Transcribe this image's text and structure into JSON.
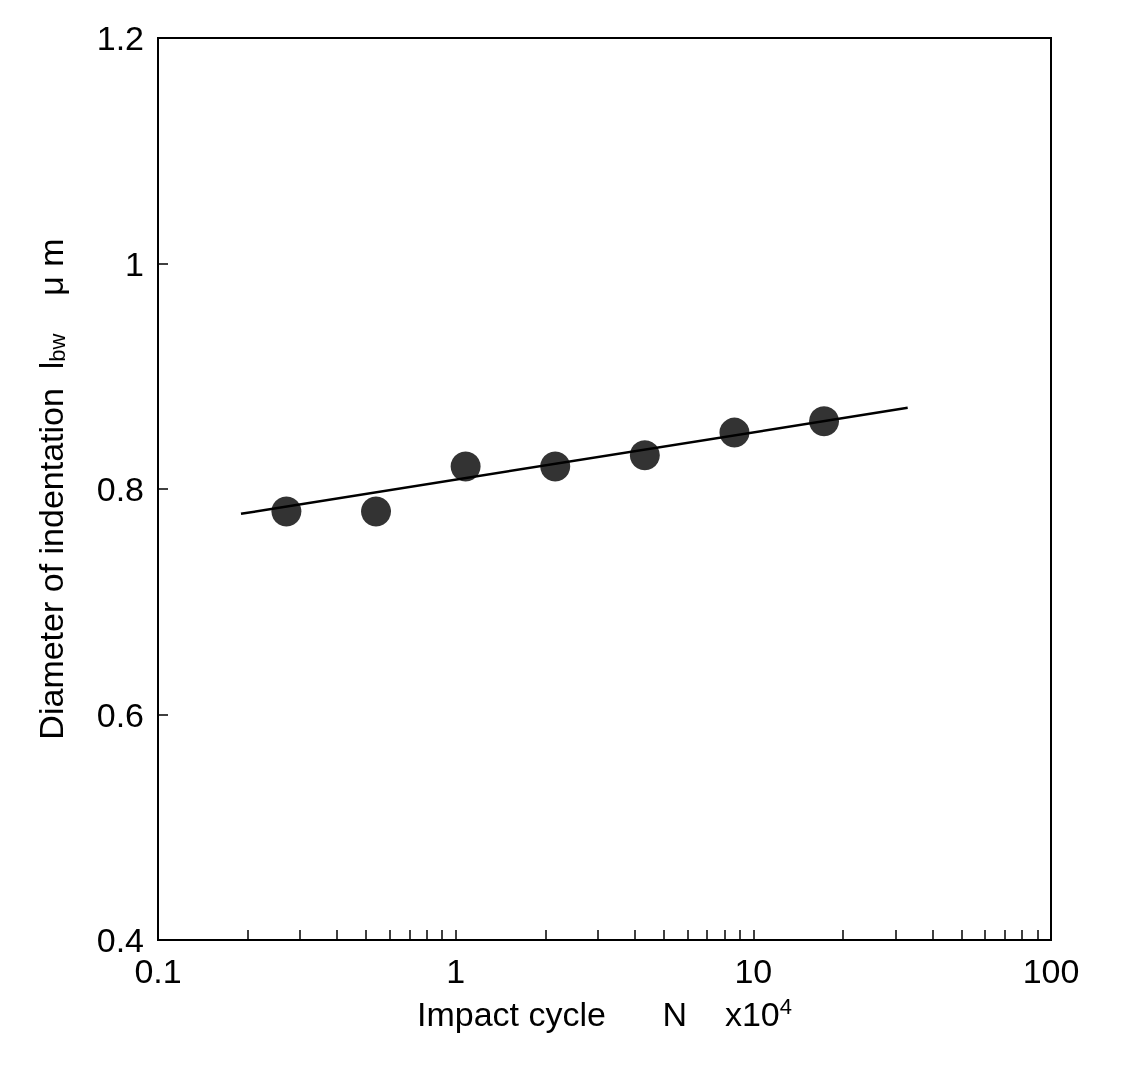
{
  "chart_data": {
    "type": "scatter",
    "xlabel": "Impact cycle      N    x10$^{4}$",
    "ylabel": "Diameter of indentation  l$_{bw}$    μ m",
    "x": [
      0.27,
      0.54,
      1.08,
      2.16,
      4.32,
      8.64,
      17.28
    ],
    "series": [
      {
        "color": "#000000",
        "values": [
          0.78,
          0.78,
          0.82,
          0.82,
          0.83,
          0.85,
          0.86
        ]
      },
      {
        "type": "line",
        "marker": "none",
        "color": "#000000",
        "x": [
          0.19,
          33
        ],
        "values": [
          0.778,
          0.872
        ]
      }
    ],
    "log": "x",
    "xlim": [
      0.1,
      100
    ],
    "ylim": [
      0.4,
      1.2
    ],
    "xticks": [
      0.1,
      {
        "value": 0.2,
        "label": null
      },
      {
        "value": 0.3,
        "label": null
      },
      {
        "value": 0.4,
        "label": null
      },
      {
        "value": 0.5,
        "label": null
      },
      {
        "value": 0.6,
        "label": null
      },
      {
        "value": 0.7,
        "label": null
      },
      {
        "value": 0.8,
        "label": null
      },
      {
        "value": 0.9,
        "label": null
      },
      1,
      {
        "value": 2,
        "label": null
      },
      {
        "value": 3,
        "label": null
      },
      {
        "value": 4,
        "label": null
      },
      {
        "value": 5,
        "label": null
      },
      {
        "value": 6,
        "label": null
      },
      {
        "value": 7,
        "label": null
      },
      {
        "value": 8,
        "label": null
      },
      {
        "value": 9,
        "label": null
      },
      10,
      {
        "value": 20,
        "label": null
      },
      {
        "value": 30,
        "label": null
      },
      {
        "value": 40,
        "label": null
      },
      {
        "value": 50,
        "label": null
      },
      {
        "value": 60,
        "label": null
      },
      {
        "value": 70,
        "label": null
      },
      {
        "value": 80,
        "label": null
      },
      {
        "value": 90,
        "label": null
      },
      100
    ],
    "yticks": [
      0.4,
      0.6,
      0.8,
      1,
      1.2
    ],
    "grid": false,
    "marker": "circle",
    "line_style": "solid"
  }
}
